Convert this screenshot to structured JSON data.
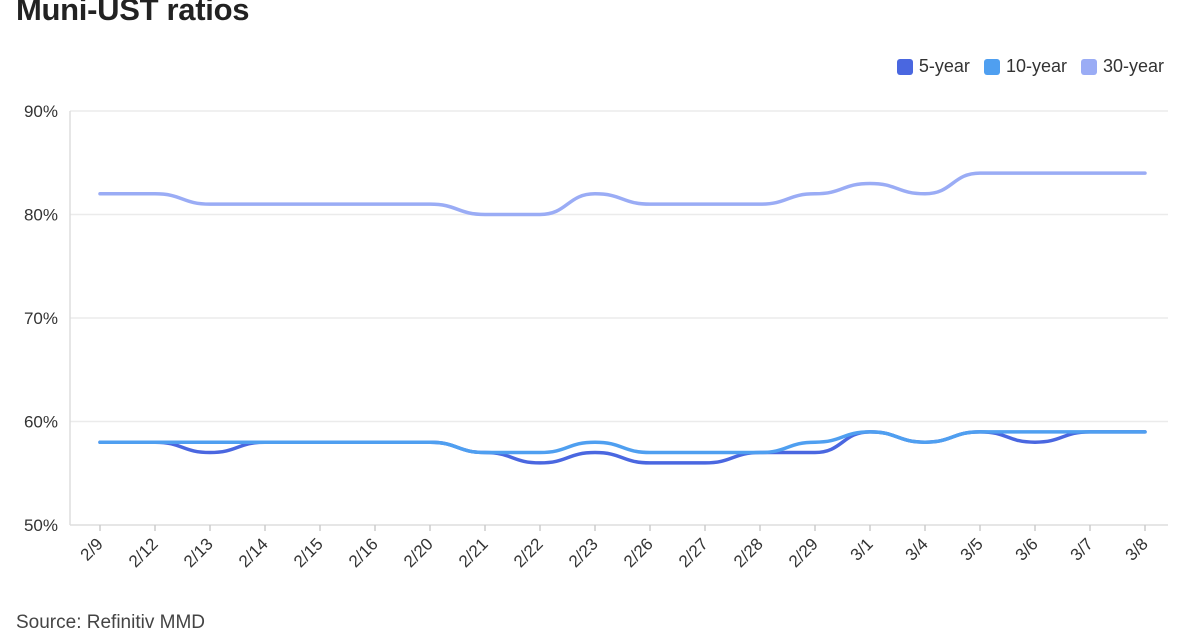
{
  "chart_data": {
    "type": "line",
    "title": "Muni-UST ratios",
    "xlabel": "",
    "ylabel": "",
    "ylim": [
      50,
      90
    ],
    "yticks": [
      "50%",
      "60%",
      "70%",
      "80%",
      "90%"
    ],
    "grid": true,
    "legend_position": "top-right",
    "source": "Source: Refinitiv MMD",
    "categories": [
      "2/9",
      "2/12",
      "2/13",
      "2/14",
      "2/15",
      "2/16",
      "2/20",
      "2/21",
      "2/22",
      "2/23",
      "2/26",
      "2/27",
      "2/28",
      "2/29",
      "3/1",
      "3/4",
      "3/5",
      "3/6",
      "3/7",
      "3/8"
    ],
    "series": [
      {
        "name": "5-year",
        "color": "#4a67e0",
        "values": [
          58,
          58,
          57,
          58,
          58,
          58,
          58,
          57,
          56,
          57,
          56,
          56,
          57,
          57,
          59,
          58,
          59,
          58,
          59,
          59
        ]
      },
      {
        "name": "10-year",
        "color": "#4f9ff0",
        "values": [
          58,
          58,
          58,
          58,
          58,
          58,
          58,
          57,
          57,
          58,
          57,
          57,
          57,
          58,
          59,
          58,
          59,
          59,
          59,
          59
        ]
      },
      {
        "name": "30-year",
        "color": "#9aacf5",
        "values": [
          82,
          82,
          81,
          81,
          81,
          81,
          81,
          80,
          80,
          82,
          81,
          81,
          81,
          82,
          83,
          82,
          84,
          84,
          84,
          84
        ]
      }
    ]
  }
}
